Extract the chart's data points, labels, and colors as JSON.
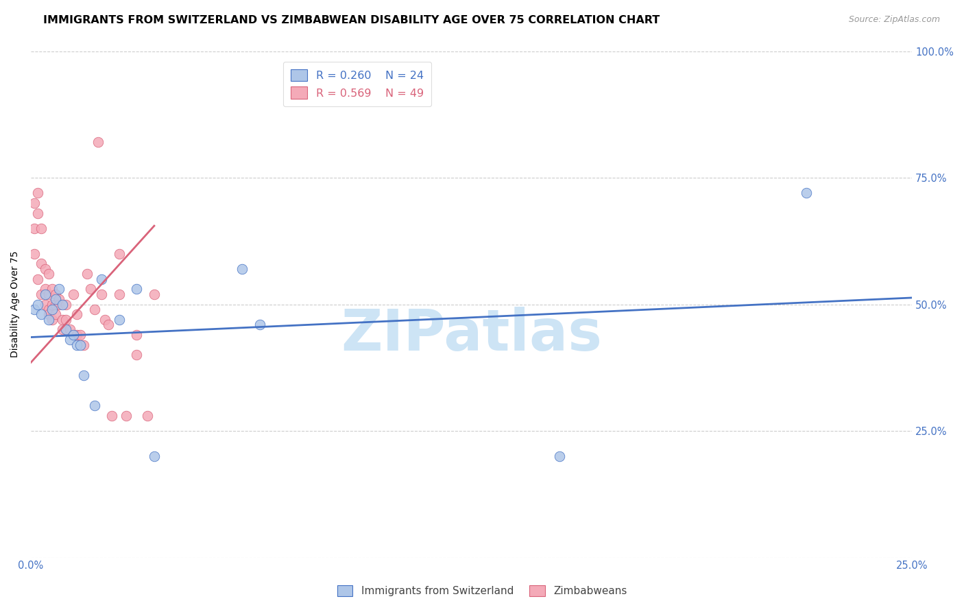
{
  "title": "IMMIGRANTS FROM SWITZERLAND VS ZIMBABWEAN DISABILITY AGE OVER 75 CORRELATION CHART",
  "source": "Source: ZipAtlas.com",
  "ylabel_label": "Disability Age Over 75",
  "xlim": [
    0.0,
    0.25
  ],
  "ylim": [
    0.0,
    1.0
  ],
  "legend_blue_r": "R = 0.260",
  "legend_blue_n": "N = 24",
  "legend_pink_r": "R = 0.569",
  "legend_pink_n": "N = 49",
  "blue_scatter_x": [
    0.001,
    0.002,
    0.003,
    0.004,
    0.005,
    0.006,
    0.007,
    0.008,
    0.009,
    0.01,
    0.011,
    0.012,
    0.013,
    0.014,
    0.015,
    0.018,
    0.02,
    0.025,
    0.03,
    0.035,
    0.06,
    0.065,
    0.15,
    0.22
  ],
  "blue_scatter_y": [
    0.49,
    0.5,
    0.48,
    0.52,
    0.47,
    0.49,
    0.51,
    0.53,
    0.5,
    0.45,
    0.43,
    0.44,
    0.42,
    0.42,
    0.36,
    0.3,
    0.55,
    0.47,
    0.53,
    0.2,
    0.57,
    0.46,
    0.2,
    0.72
  ],
  "pink_scatter_x": [
    0.001,
    0.001,
    0.001,
    0.002,
    0.002,
    0.002,
    0.003,
    0.003,
    0.003,
    0.004,
    0.004,
    0.004,
    0.005,
    0.005,
    0.005,
    0.005,
    0.006,
    0.006,
    0.006,
    0.007,
    0.007,
    0.007,
    0.008,
    0.008,
    0.009,
    0.009,
    0.01,
    0.01,
    0.011,
    0.012,
    0.013,
    0.013,
    0.014,
    0.015,
    0.016,
    0.017,
    0.018,
    0.019,
    0.02,
    0.021,
    0.022,
    0.023,
    0.025,
    0.027,
    0.03,
    0.03,
    0.033,
    0.035,
    0.025
  ],
  "pink_scatter_y": [
    0.7,
    0.65,
    0.6,
    0.72,
    0.68,
    0.55,
    0.65,
    0.58,
    0.52,
    0.57,
    0.53,
    0.5,
    0.56,
    0.52,
    0.49,
    0.48,
    0.53,
    0.5,
    0.47,
    0.52,
    0.5,
    0.48,
    0.51,
    0.5,
    0.47,
    0.45,
    0.5,
    0.47,
    0.45,
    0.52,
    0.48,
    0.44,
    0.44,
    0.42,
    0.56,
    0.53,
    0.49,
    0.82,
    0.52,
    0.47,
    0.46,
    0.28,
    0.52,
    0.28,
    0.4,
    0.44,
    0.28,
    0.52,
    0.6
  ],
  "blue_line_x": [
    0.0,
    0.25
  ],
  "blue_line_y": [
    0.435,
    0.513
  ],
  "pink_line_x": [
    0.0,
    0.035
  ],
  "pink_line_y": [
    0.385,
    0.655
  ],
  "blue_color": "#aec6e8",
  "blue_line_color": "#4472c4",
  "pink_color": "#f4aab8",
  "pink_line_color": "#d9637a",
  "watermark_text": "ZIPatlas",
  "watermark_color": "#cde4f5",
  "background_color": "#ffffff",
  "grid_color": "#cccccc",
  "title_fontsize": 11.5,
  "axis_label_fontsize": 10,
  "tick_fontsize": 10.5,
  "legend_fontsize": 11.5,
  "source_fontsize": 9,
  "watermark_fontsize": 60
}
